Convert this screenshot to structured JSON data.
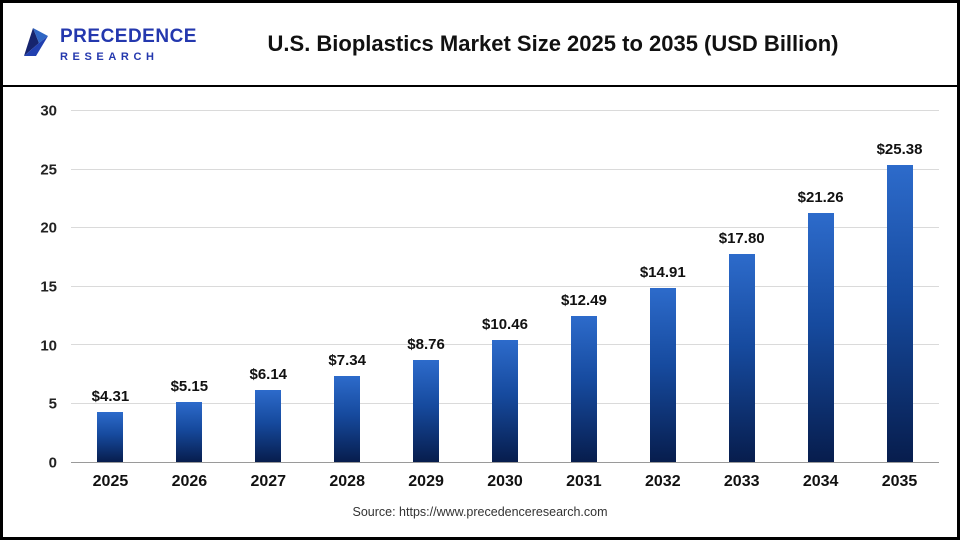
{
  "header": {
    "logo": {
      "line1": "PRECEDENCE",
      "line2": "RESEARCH"
    },
    "title": "U.S. Bioplastics Market Size 2025 to 2035 (USD Billion)"
  },
  "footer": {
    "source": "Source: https://www.precedenceresearch.com"
  },
  "colors": {
    "logo_blue": "#2438ae",
    "bar_gradient_top": "#2d6bcb",
    "bar_gradient_mid": "#164a9e",
    "bar_gradient_bottom": "#071d4d",
    "gridline": "#dadada",
    "text": "#111111"
  },
  "chart_data": {
    "type": "bar",
    "title": "U.S. Bioplastics Market Size 2025 to 2035 (USD Billion)",
    "categories": [
      "2025",
      "2026",
      "2027",
      "2028",
      "2029",
      "2030",
      "2031",
      "2032",
      "2033",
      "2034",
      "2035"
    ],
    "values": [
      4.31,
      5.15,
      6.14,
      7.34,
      8.76,
      10.46,
      12.49,
      14.91,
      17.8,
      21.26,
      25.38
    ],
    "labels": [
      "$4.31",
      "$5.15",
      "$6.14",
      "$7.34",
      "$8.76",
      "$10.46",
      "$12.49",
      "$14.91",
      "$17.80",
      "$21.26",
      "$25.38"
    ],
    "xlabel": "",
    "ylabel": "",
    "ylim": [
      0,
      30
    ],
    "yticks": [
      0,
      5,
      10,
      15,
      20,
      25,
      30
    ],
    "grid": true,
    "legend": "none",
    "bar_color_top": "#2d6bcb",
    "bar_color_mid": "#164a9e",
    "bar_color_bottom": "#071d4d"
  }
}
